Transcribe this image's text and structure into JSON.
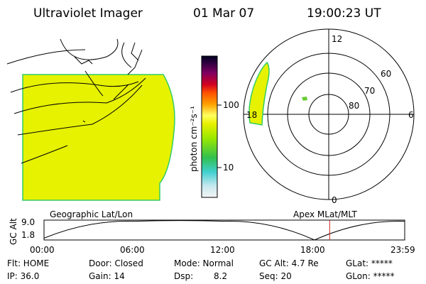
{
  "header": {
    "instrument": "Ultraviolet Imager",
    "date": "01 Mar 07",
    "time": "19:00:23 UT"
  },
  "colorbar": {
    "label": "photon cm⁻²s⁻¹",
    "ticks": [
      "100",
      "10"
    ]
  },
  "polar": {
    "label": "Apex MLat/MLT",
    "mlt_labels": [
      "12",
      "18",
      "6",
      "0"
    ],
    "lat_labels": [
      "60",
      "70",
      "80"
    ]
  },
  "map": {
    "label": "Geographic Lat/Lon"
  },
  "altitude_plot": {
    "ylabel": "GC Alt",
    "yticks": [
      "9.0",
      "1.8"
    ],
    "xticks": [
      "00:00",
      "06:00",
      "12:00",
      "18:00",
      "23:59"
    ]
  },
  "status": {
    "flt": "Flt: HOME",
    "ip": "IP: 36.0",
    "door": "Door: Closed",
    "gain": "Gain: 14",
    "mode": "Mode: Normal",
    "dsp_label": "Dsp:",
    "dsp_value": "8.2",
    "gc_alt": "GC Alt: 4.7 Re",
    "seq": "Seq: 20",
    "glat": "GLat: *****",
    "glon": "GLon: *****"
  },
  "chart_data": [
    {
      "type": "line",
      "title": "",
      "xlabel": "",
      "ylabel": "GC Alt",
      "x": [
        "00:00",
        "06:00",
        "12:00",
        "18:00",
        "23:59"
      ],
      "series": [
        {
          "values": [
            1.8,
            9.0,
            9.0,
            1.0,
            9.0
          ]
        }
      ],
      "ylim": [
        1.0,
        9.5
      ],
      "grid": false,
      "current_time": "19:00:23"
    }
  ]
}
